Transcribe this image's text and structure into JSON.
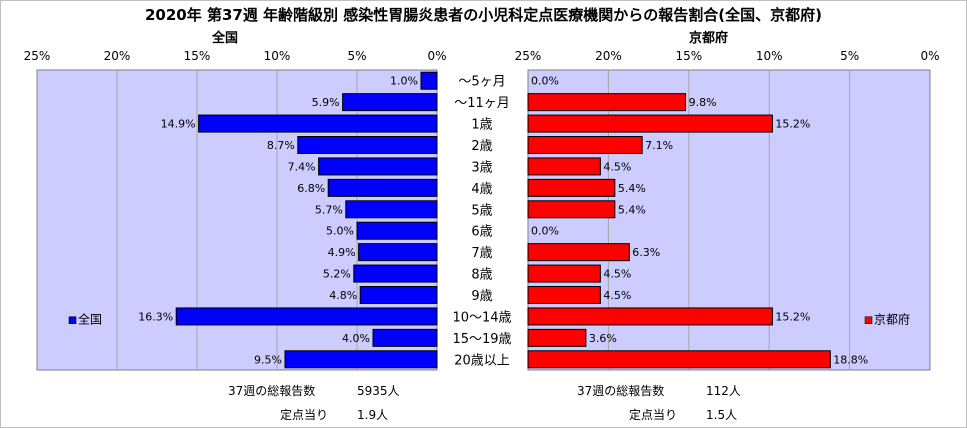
{
  "title": "2020年 第37週 年齢階級別 感染性胃腸炎患者の小児科定点医療機関からの報告割合(全国、京都府)",
  "chart_data": {
    "type": "bar",
    "orientation": "horizontal-mirrored",
    "categories": [
      "～5ヶ月",
      "～11ヶ月",
      "1歳",
      "2歳",
      "3歳",
      "4歳",
      "5歳",
      "6歳",
      "7歳",
      "8歳",
      "9歳",
      "10～14歳",
      "15～19歳",
      "20歳以上"
    ],
    "x_ticks": [
      "25%",
      "20%",
      "15%",
      "10%",
      "5%",
      "0%"
    ],
    "xlim": [
      0,
      25
    ],
    "grid": true,
    "colors": {
      "national": "#0000ff",
      "kyoto": "#ff0000",
      "plot_bg": "#ccccff"
    },
    "series": [
      {
        "key": "national",
        "name": "全国",
        "panel_title": "全国",
        "legend": "全国",
        "values": [
          1.0,
          5.9,
          14.9,
          8.7,
          7.4,
          6.8,
          5.7,
          5.0,
          4.9,
          5.2,
          4.8,
          16.3,
          4.0,
          9.5
        ],
        "labels": [
          "1.0%",
          "5.9%",
          "14.9%",
          "8.7%",
          "7.4%",
          "6.8%",
          "5.7%",
          "5.0%",
          "4.9%",
          "5.2%",
          "4.8%",
          "16.3%",
          "4.0%",
          "9.5%"
        ]
      },
      {
        "key": "kyoto",
        "name": "京都府",
        "panel_title": "京都府",
        "legend": "京都府",
        "values": [
          0.0,
          9.8,
          15.2,
          7.1,
          4.5,
          5.4,
          5.4,
          0.0,
          6.3,
          4.5,
          4.5,
          15.2,
          3.6,
          18.8
        ],
        "labels": [
          "0.0%",
          "9.8%",
          "15.2%",
          "7.1%",
          "4.5%",
          "5.4%",
          "5.4%",
          "0.0%",
          "6.3%",
          "4.5%",
          "4.5%",
          "15.2%",
          "3.6%",
          "18.8%"
        ]
      }
    ]
  },
  "footer": {
    "national": {
      "total_label": "37週の総報告数",
      "total_value": "5935人",
      "per_label": "定点当り",
      "per_value": "1.9人"
    },
    "kyoto": {
      "total_label": "37週の総報告数",
      "total_value": "112人",
      "per_label": "定点当り",
      "per_value": "1.5人"
    }
  }
}
